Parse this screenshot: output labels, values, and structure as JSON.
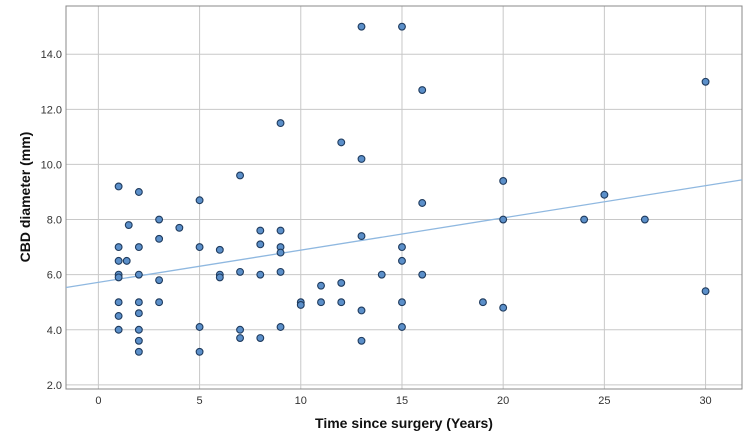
{
  "chart_data": {
    "type": "scatter",
    "title": "",
    "xlabel": "Time since surgery (Years)",
    "ylabel": "CBD diameter (mm)",
    "xlim": [
      -1.6,
      31.8
    ],
    "ylim": [
      1.85,
      15.75
    ],
    "xticks": [
      0,
      5,
      10,
      15,
      20,
      25,
      30
    ],
    "xtick_labels": [
      "0",
      "5",
      "10",
      "15",
      "20",
      "25",
      "30"
    ],
    "yticks": [
      2.0,
      4.0,
      6.0,
      8.0,
      10.0,
      12.0,
      14.0
    ],
    "ytick_labels": [
      "2.0",
      "4.0",
      "6.0",
      "8.0",
      "10.0",
      "12.0",
      "14.0"
    ],
    "grid": true,
    "colors": {
      "marker_fill": "#5b8fc9",
      "marker_edge": "#1f3b5e",
      "fit_line": "#8fb8e0",
      "grid": "#c8c8c8",
      "frame": "#888888"
    },
    "series": [
      {
        "points": [
          [
            1,
            9.2
          ],
          [
            1,
            7.0
          ],
          [
            1,
            6.5
          ],
          [
            1,
            6.0
          ],
          [
            1,
            5.9
          ],
          [
            1,
            5.0
          ],
          [
            1,
            4.5
          ],
          [
            1,
            4.0
          ],
          [
            1.5,
            7.8
          ],
          [
            1.4,
            6.5
          ],
          [
            2,
            9.0
          ],
          [
            2,
            7.0
          ],
          [
            2,
            6.0
          ],
          [
            2,
            5.0
          ],
          [
            2,
            4.6
          ],
          [
            2,
            4.0
          ],
          [
            2,
            3.6
          ],
          [
            2,
            3.2
          ],
          [
            3,
            8.0
          ],
          [
            3,
            7.3
          ],
          [
            3,
            5.8
          ],
          [
            3,
            5.0
          ],
          [
            4,
            7.7
          ],
          [
            5,
            8.7
          ],
          [
            5,
            7.0
          ],
          [
            5,
            4.1
          ],
          [
            5,
            3.2
          ],
          [
            6,
            6.9
          ],
          [
            6,
            6.0
          ],
          [
            6,
            5.9
          ],
          [
            7,
            9.6
          ],
          [
            7,
            6.1
          ],
          [
            7,
            4.0
          ],
          [
            7,
            3.7
          ],
          [
            8,
            7.6
          ],
          [
            8,
            7.1
          ],
          [
            8,
            6.0
          ],
          [
            8,
            3.7
          ],
          [
            9,
            11.5
          ],
          [
            9,
            7.6
          ],
          [
            9,
            7.0
          ],
          [
            9,
            6.8
          ],
          [
            9,
            6.1
          ],
          [
            9,
            4.1
          ],
          [
            10,
            5.0
          ],
          [
            10,
            4.9
          ],
          [
            11,
            5.6
          ],
          [
            11,
            5.0
          ],
          [
            12,
            10.8
          ],
          [
            12,
            5.7
          ],
          [
            12,
            5.0
          ],
          [
            13,
            15.0
          ],
          [
            13,
            10.2
          ],
          [
            13,
            7.4
          ],
          [
            13,
            4.7
          ],
          [
            13,
            3.6
          ],
          [
            14,
            6.0
          ],
          [
            15,
            15.0
          ],
          [
            15,
            7.0
          ],
          [
            15,
            6.5
          ],
          [
            15,
            5.0
          ],
          [
            15,
            4.1
          ],
          [
            16,
            12.7
          ],
          [
            16,
            8.6
          ],
          [
            16,
            6.0
          ],
          [
            19,
            5.0
          ],
          [
            20,
            9.4
          ],
          [
            20,
            8.0
          ],
          [
            20,
            4.8
          ],
          [
            24,
            8.0
          ],
          [
            25,
            8.9
          ],
          [
            27,
            8.0
          ],
          [
            30,
            13.0
          ],
          [
            30,
            5.4
          ]
        ]
      }
    ],
    "fit_line": {
      "type": "linear",
      "intercept": 5.72,
      "slope": 0.117
    }
  }
}
